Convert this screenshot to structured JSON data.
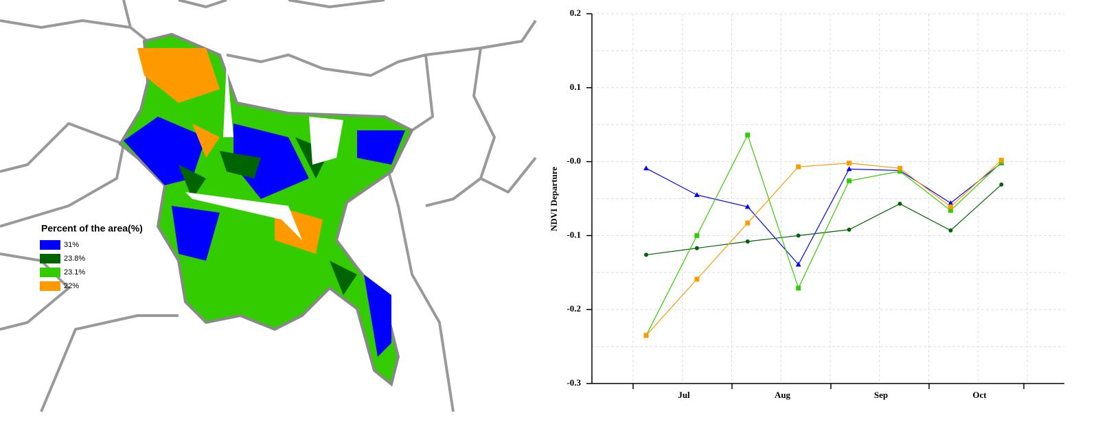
{
  "map_legend": {
    "title": "Percent of the area(%)",
    "items": [
      {
        "label": "31%",
        "color": "#0000ff"
      },
      {
        "label": "23.8%",
        "color": "#006400"
      },
      {
        "label": "23.1%",
        "color": "#33cc00"
      },
      {
        "label": "22%",
        "color": "#ff9900"
      }
    ]
  },
  "chart_data": {
    "type": "line",
    "y_label": "NDVI Departure",
    "categories": [
      null,
      null,
      null,
      null,
      null,
      null,
      null,
      null
    ],
    "month_labels": [
      "Jul",
      "Aug",
      "Sep",
      "Oct"
    ],
    "series": [
      {
        "color": "#0000ff",
        "marker": "triangle",
        "values": [
          -0.009,
          -0.045,
          -0.061,
          -0.139,
          -0.01,
          -0.012,
          -0.056,
          -0.002
        ]
      },
      {
        "color": "#006400",
        "marker": "circle",
        "values": [
          -0.126,
          -0.117,
          -0.108,
          -0.1,
          -0.092,
          -0.057,
          -0.093,
          -0.031
        ]
      },
      {
        "color": "#33cc00",
        "marker": "square",
        "values": [
          -0.235,
          -0.1,
          0.036,
          -0.171,
          -0.026,
          -0.013,
          -0.066,
          -0.001
        ]
      },
      {
        "color": "#ff9900",
        "marker": "square",
        "values": [
          -0.235,
          -0.159,
          -0.083,
          -0.007,
          -0.002,
          -0.009,
          -0.061,
          0.002
        ]
      }
    ],
    "ylim": [
      -0.3,
      0.2
    ],
    "yticks": [
      -0.3,
      -0.2,
      -0.1,
      {
        "value": 0,
        "label": "-0.0"
      },
      0.1,
      0.2
    ],
    "grid": true
  }
}
